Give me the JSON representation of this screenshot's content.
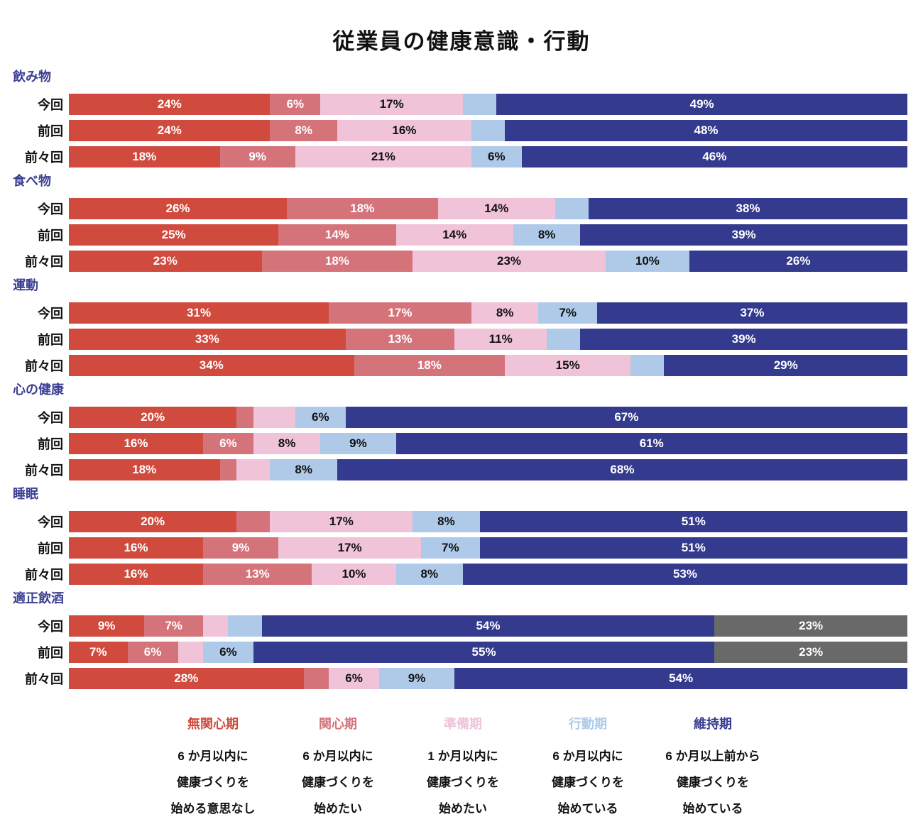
{
  "title": "従業員の健康意識・行動",
  "colors": {
    "stage_colors": [
      "#d04a3d",
      "#d5737a",
      "#f0c3d8",
      "#aecae8",
      "#343a8d"
    ],
    "extra_color": "#696969",
    "category_label": "#3a3e92",
    "light_text": "#ffffff",
    "dark_text": "#111111"
  },
  "chart_data": {
    "type": "bar",
    "orientation": "horizontal-stacked",
    "title": "従業員の健康意識・行動",
    "unit": "%",
    "xlim": [
      0,
      100
    ],
    "legend_position": "bottom",
    "stages": [
      "無関心期",
      "関心期",
      "準備期",
      "行動期",
      "維持期"
    ],
    "row_labels": [
      "今回",
      "前回",
      "前々回"
    ],
    "groups": [
      {
        "name": "飲み物",
        "rows": [
          {
            "label": "今回",
            "segments": [
              {
                "s": 0,
                "v": 24,
                "t": "24%"
              },
              {
                "s": 1,
                "v": 6,
                "t": "6%"
              },
              {
                "s": 2,
                "v": 17,
                "t": "17%"
              },
              {
                "s": 3,
                "v": 4,
                "t": ""
              },
              {
                "s": 4,
                "v": 49,
                "t": "49%"
              }
            ]
          },
          {
            "label": "前回",
            "segments": [
              {
                "s": 0,
                "v": 24,
                "t": "24%"
              },
              {
                "s": 1,
                "v": 8,
                "t": "8%"
              },
              {
                "s": 2,
                "v": 16,
                "t": "16%"
              },
              {
                "s": 3,
                "v": 4,
                "t": ""
              },
              {
                "s": 4,
                "v": 48,
                "t": "48%"
              }
            ]
          },
          {
            "label": "前々回",
            "segments": [
              {
                "s": 0,
                "v": 18,
                "t": "18%"
              },
              {
                "s": 1,
                "v": 9,
                "t": "9%"
              },
              {
                "s": 2,
                "v": 21,
                "t": "21%"
              },
              {
                "s": 3,
                "v": 6,
                "t": "6%"
              },
              {
                "s": 4,
                "v": 46,
                "t": "46%"
              }
            ]
          }
        ]
      },
      {
        "name": "食べ物",
        "rows": [
          {
            "label": "今回",
            "segments": [
              {
                "s": 0,
                "v": 26,
                "t": "26%"
              },
              {
                "s": 1,
                "v": 18,
                "t": "18%"
              },
              {
                "s": 2,
                "v": 14,
                "t": "14%"
              },
              {
                "s": 3,
                "v": 4,
                "t": ""
              },
              {
                "s": 4,
                "v": 38,
                "t": "38%"
              }
            ]
          },
          {
            "label": "前回",
            "segments": [
              {
                "s": 0,
                "v": 25,
                "t": "25%"
              },
              {
                "s": 1,
                "v": 14,
                "t": "14%"
              },
              {
                "s": 2,
                "v": 14,
                "t": "14%"
              },
              {
                "s": 3,
                "v": 8,
                "t": "8%"
              },
              {
                "s": 4,
                "v": 39,
                "t": "39%"
              }
            ]
          },
          {
            "label": "前々回",
            "segments": [
              {
                "s": 0,
                "v": 23,
                "t": "23%"
              },
              {
                "s": 1,
                "v": 18,
                "t": "18%"
              },
              {
                "s": 2,
                "v": 23,
                "t": "23%"
              },
              {
                "s": 3,
                "v": 10,
                "t": "10%"
              },
              {
                "s": 4,
                "v": 26,
                "t": "26%"
              }
            ]
          }
        ]
      },
      {
        "name": "運動",
        "rows": [
          {
            "label": "今回",
            "segments": [
              {
                "s": 0,
                "v": 31,
                "t": "31%"
              },
              {
                "s": 1,
                "v": 17,
                "t": "17%"
              },
              {
                "s": 2,
                "v": 8,
                "t": "8%"
              },
              {
                "s": 3,
                "v": 7,
                "t": "7%"
              },
              {
                "s": 4,
                "v": 37,
                "t": "37%"
              }
            ]
          },
          {
            "label": "前回",
            "segments": [
              {
                "s": 0,
                "v": 33,
                "t": "33%"
              },
              {
                "s": 1,
                "v": 13,
                "t": "13%"
              },
              {
                "s": 2,
                "v": 11,
                "t": "11%"
              },
              {
                "s": 3,
                "v": 4,
                "t": ""
              },
              {
                "s": 4,
                "v": 39,
                "t": "39%"
              }
            ]
          },
          {
            "label": "前々回",
            "segments": [
              {
                "s": 0,
                "v": 34,
                "t": "34%"
              },
              {
                "s": 1,
                "v": 18,
                "t": "18%"
              },
              {
                "s": 2,
                "v": 15,
                "t": "15%"
              },
              {
                "s": 3,
                "v": 4,
                "t": ""
              },
              {
                "s": 4,
                "v": 29,
                "t": "29%"
              }
            ]
          }
        ]
      },
      {
        "name": "心の健康",
        "rows": [
          {
            "label": "今回",
            "segments": [
              {
                "s": 0,
                "v": 20,
                "t": "20%"
              },
              {
                "s": 1,
                "v": 2,
                "t": ""
              },
              {
                "s": 2,
                "v": 5,
                "t": ""
              },
              {
                "s": 3,
                "v": 6,
                "t": "6%"
              },
              {
                "s": 4,
                "v": 67,
                "t": "67%"
              }
            ]
          },
          {
            "label": "前回",
            "segments": [
              {
                "s": 0,
                "v": 16,
                "t": "16%"
              },
              {
                "s": 1,
                "v": 6,
                "t": "6%"
              },
              {
                "s": 2,
                "v": 8,
                "t": "8%"
              },
              {
                "s": 3,
                "v": 9,
                "t": "9%"
              },
              {
                "s": 4,
                "v": 61,
                "t": "61%"
              }
            ]
          },
          {
            "label": "前々回",
            "segments": [
              {
                "s": 0,
                "v": 18,
                "t": "18%"
              },
              {
                "s": 1,
                "v": 2,
                "t": ""
              },
              {
                "s": 2,
                "v": 4,
                "t": ""
              },
              {
                "s": 3,
                "v": 8,
                "t": "8%"
              },
              {
                "s": 4,
                "v": 68,
                "t": "68%"
              }
            ]
          }
        ]
      },
      {
        "name": "睡眠",
        "rows": [
          {
            "label": "今回",
            "segments": [
              {
                "s": 0,
                "v": 20,
                "t": "20%"
              },
              {
                "s": 1,
                "v": 4,
                "t": ""
              },
              {
                "s": 2,
                "v": 17,
                "t": "17%"
              },
              {
                "s": 3,
                "v": 8,
                "t": "8%"
              },
              {
                "s": 4,
                "v": 51,
                "t": "51%"
              }
            ]
          },
          {
            "label": "前回",
            "segments": [
              {
                "s": 0,
                "v": 16,
                "t": "16%"
              },
              {
                "s": 1,
                "v": 9,
                "t": "9%"
              },
              {
                "s": 2,
                "v": 17,
                "t": "17%"
              },
              {
                "s": 3,
                "v": 7,
                "t": "7%"
              },
              {
                "s": 4,
                "v": 51,
                "t": "51%"
              }
            ]
          },
          {
            "label": "前々回",
            "segments": [
              {
                "s": 0,
                "v": 16,
                "t": "16%"
              },
              {
                "s": 1,
                "v": 13,
                "t": "13%"
              },
              {
                "s": 2,
                "v": 10,
                "t": "10%"
              },
              {
                "s": 3,
                "v": 8,
                "t": "8%"
              },
              {
                "s": 4,
                "v": 53,
                "t": "53%"
              }
            ]
          }
        ]
      },
      {
        "name": "適正飲酒",
        "rows": [
          {
            "label": "今回",
            "segments": [
              {
                "s": 0,
                "v": 9,
                "t": "9%"
              },
              {
                "s": 1,
                "v": 7,
                "t": "7%"
              },
              {
                "s": 2,
                "v": 3,
                "t": ""
              },
              {
                "s": 3,
                "v": 4,
                "t": ""
              },
              {
                "s": 4,
                "v": 54,
                "t": "54%"
              },
              {
                "s": 5,
                "v": 23,
                "t": "23%"
              }
            ]
          },
          {
            "label": "前回",
            "segments": [
              {
                "s": 0,
                "v": 7,
                "t": "7%"
              },
              {
                "s": 1,
                "v": 6,
                "t": "6%"
              },
              {
                "s": 2,
                "v": 3,
                "t": ""
              },
              {
                "s": 3,
                "v": 6,
                "t": "6%"
              },
              {
                "s": 4,
                "v": 55,
                "t": "55%"
              },
              {
                "s": 5,
                "v": 23,
                "t": "23%"
              }
            ]
          },
          {
            "label": "前々回",
            "segments": [
              {
                "s": 0,
                "v": 28,
                "t": "28%"
              },
              {
                "s": 1,
                "v": 3,
                "t": ""
              },
              {
                "s": 2,
                "v": 6,
                "t": "6%"
              },
              {
                "s": 3,
                "v": 9,
                "t": "9%"
              },
              {
                "s": 4,
                "v": 54,
                "t": "54%"
              }
            ]
          }
        ]
      }
    ]
  },
  "legend": [
    {
      "label": "無関心期",
      "stage": 0,
      "desc": [
        "6 か月以内に",
        "健康づくりを",
        "始める意思なし"
      ]
    },
    {
      "label": "関心期",
      "stage": 1,
      "desc": [
        "6 か月以内に",
        "健康づくりを",
        "始めたい"
      ]
    },
    {
      "label": "準備期",
      "stage": 2,
      "desc": [
        "1 か月以内に",
        "健康づくりを",
        "始めたい"
      ]
    },
    {
      "label": "行動期",
      "stage": 3,
      "desc": [
        "6 か月以内に",
        "健康づくりを",
        "始めている"
      ]
    },
    {
      "label": "維持期",
      "stage": 4,
      "desc": [
        "6 か月以上前から",
        "健康づくりを",
        "始めている"
      ]
    }
  ]
}
